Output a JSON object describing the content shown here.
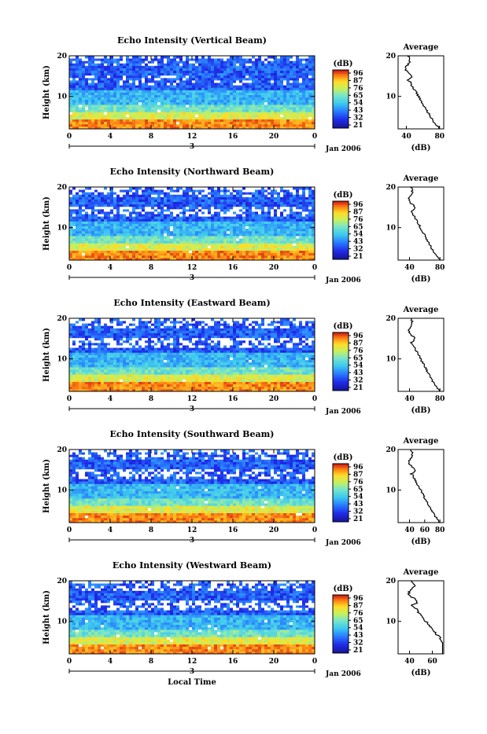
{
  "chart_data": [
    {
      "type": "heatmap",
      "title": "Echo Intensity (Vertical Beam)",
      "ylabel": "Height (km)",
      "yticks": [
        10,
        20
      ],
      "ylim": [
        2,
        20
      ],
      "xticks": [
        "0",
        "4",
        "8",
        "12",
        "16",
        "20",
        "0"
      ],
      "xlim": [
        0,
        24
      ],
      "date_marker": "3",
      "date_label": "Jan 2006",
      "colorbar": {
        "label": "(dB)",
        "ticks": [
          "96",
          "87",
          "76",
          "65",
          "54",
          "43",
          "32",
          "21"
        ]
      },
      "profile": {
        "title": "Average",
        "xlabel": "(dB)",
        "xticks": [
          "40",
          "80"
        ],
        "xlim": [
          30,
          85
        ],
        "yticks": [
          10,
          20
        ]
      },
      "white_fraction": 0.15
    },
    {
      "type": "heatmap",
      "title": "Echo Intensity (Northward Beam)",
      "ylabel": "Height (km)",
      "yticks": [
        10,
        20
      ],
      "ylim": [
        2,
        20
      ],
      "xticks": [
        "0",
        "4",
        "8",
        "12",
        "16",
        "20",
        "0"
      ],
      "xlim": [
        0,
        24
      ],
      "date_marker": "3",
      "date_label": "Jan 2006",
      "colorbar": {
        "label": "(dB)",
        "ticks": [
          "96",
          "87",
          "76",
          "65",
          "54",
          "43",
          "32",
          "21"
        ]
      },
      "profile": {
        "title": "Average",
        "xlabel": "(dB)",
        "xticks": [
          "40",
          "80"
        ],
        "xlim": [
          25,
          85
        ],
        "yticks": [
          10,
          20
        ]
      },
      "white_fraction": 0.35
    },
    {
      "type": "heatmap",
      "title": "Echo Intensity (Eastward Beam)",
      "ylabel": "Height (km)",
      "yticks": [
        10,
        20
      ],
      "ylim": [
        2,
        20
      ],
      "xticks": [
        "0",
        "4",
        "8",
        "12",
        "16",
        "20",
        "0"
      ],
      "xlim": [
        0,
        24
      ],
      "date_marker": "3",
      "date_label": "Jan 2006",
      "colorbar": {
        "label": "(dB)",
        "ticks": [
          "96",
          "87",
          "76",
          "65",
          "54",
          "43",
          "32",
          "21"
        ]
      },
      "profile": {
        "title": "Average",
        "xlabel": "(dB)",
        "xticks": [
          "40",
          "80"
        ],
        "xlim": [
          25,
          85
        ],
        "yticks": [
          10,
          20
        ]
      },
      "white_fraction": 0.45
    },
    {
      "type": "heatmap",
      "title": "Echo Intensity (Southward Beam)",
      "ylabel": "Height (km)",
      "yticks": [
        10,
        20
      ],
      "ylim": [
        2,
        20
      ],
      "xticks": [
        "0",
        "4",
        "8",
        "12",
        "16",
        "20",
        "0"
      ],
      "xlim": [
        0,
        24
      ],
      "date_marker": "3",
      "date_label": "Jan 2006",
      "colorbar": {
        "label": "(dB)",
        "ticks": [
          "96",
          "87",
          "76",
          "65",
          "54",
          "43",
          "32",
          "21"
        ]
      },
      "profile": {
        "title": "Average",
        "xlabel": "(dB)",
        "xticks": [
          "40",
          "60",
          "80"
        ],
        "xlim": [
          25,
          85
        ],
        "yticks": [
          10,
          20
        ]
      },
      "white_fraction": 0.4
    },
    {
      "type": "heatmap",
      "title": "Echo Intensity (Westward Beam)",
      "ylabel": "Height (km)",
      "yticks": [
        10,
        20
      ],
      "ylim": [
        2,
        20
      ],
      "xticks": [
        "0",
        "4",
        "8",
        "12",
        "16",
        "20",
        "0"
      ],
      "xlim": [
        0,
        24
      ],
      "date_marker": "3",
      "date_label": "Jan 2006",
      "colorbar": {
        "label": "(dB)",
        "ticks": [
          "96",
          "87",
          "76",
          "65",
          "54",
          "43",
          "32",
          "21"
        ]
      },
      "profile": {
        "title": "Average",
        "xlabel": "(dB)",
        "xticks": [
          "40",
          "60"
        ],
        "xlim": [
          30,
          70
        ],
        "yticks": [
          10,
          20
        ]
      },
      "white_fraction": 0.45,
      "xlabel": "Local Time"
    }
  ]
}
